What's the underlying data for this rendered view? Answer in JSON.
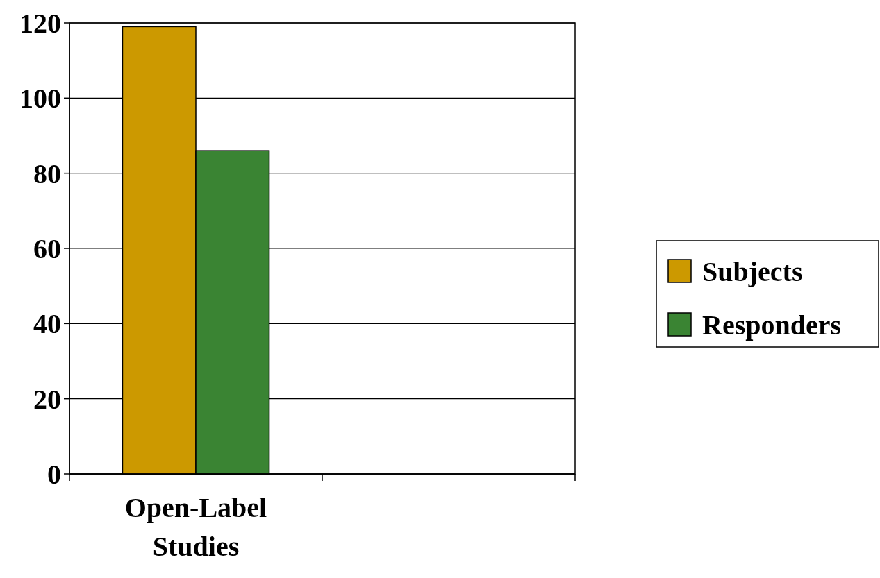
{
  "chart_data": {
    "type": "bar",
    "categories": [
      "Open-Label Studies",
      null
    ],
    "series": [
      {
        "name": "Subjects",
        "color": "#cc9900",
        "values": [
          119,
          null
        ]
      },
      {
        "name": "Responders",
        "color": "#3a8433",
        "values": [
          86,
          null
        ]
      }
    ],
    "ylim": [
      0,
      120
    ],
    "yticks": [
      0,
      20,
      40,
      60,
      80,
      100,
      120
    ],
    "grid": "y",
    "legend": "right"
  }
}
